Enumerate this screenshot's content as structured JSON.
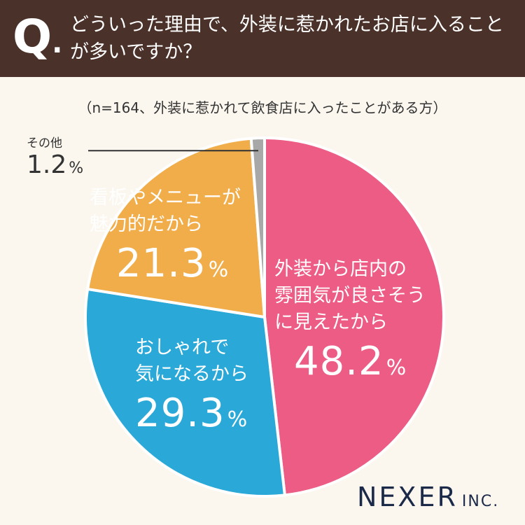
{
  "header": {
    "q_letter": "Q",
    "q_dot": ".",
    "question": "どういった理由で、外装に惹かれたお店に入ることが多いですか？"
  },
  "sample_note": "（n=164、外装に惹かれて飲食店に入ったことがある方）",
  "colors": {
    "header_bg": "#4a3129",
    "background": "#fbf7ee",
    "slice_1": "#ec5c84",
    "slice_2": "#2aa8d8",
    "slice_3": "#f0ad4a",
    "slice_4": "#a8a8a8"
  },
  "chart_data": {
    "type": "pie",
    "unit": "%",
    "slices": [
      {
        "label": "外装から店内の雰囲気が良さそうに見えたから",
        "lines": [
          "外装から店内の",
          "雰囲気が良さそう",
          "に見えたから"
        ],
        "value": 48.2
      },
      {
        "label": "おしゃれで気になるから",
        "lines": [
          "おしゃれで",
          "気になるから"
        ],
        "value": 29.3
      },
      {
        "label": "看板やメニューが魅力的だから",
        "lines": [
          "看板やメニューが",
          "魅力的だから"
        ],
        "value": 21.3
      },
      {
        "label": "その他",
        "lines": [
          "その他"
        ],
        "value": 1.2
      }
    ]
  },
  "logo": {
    "main": "NEXER",
    "suffix": "INC."
  }
}
